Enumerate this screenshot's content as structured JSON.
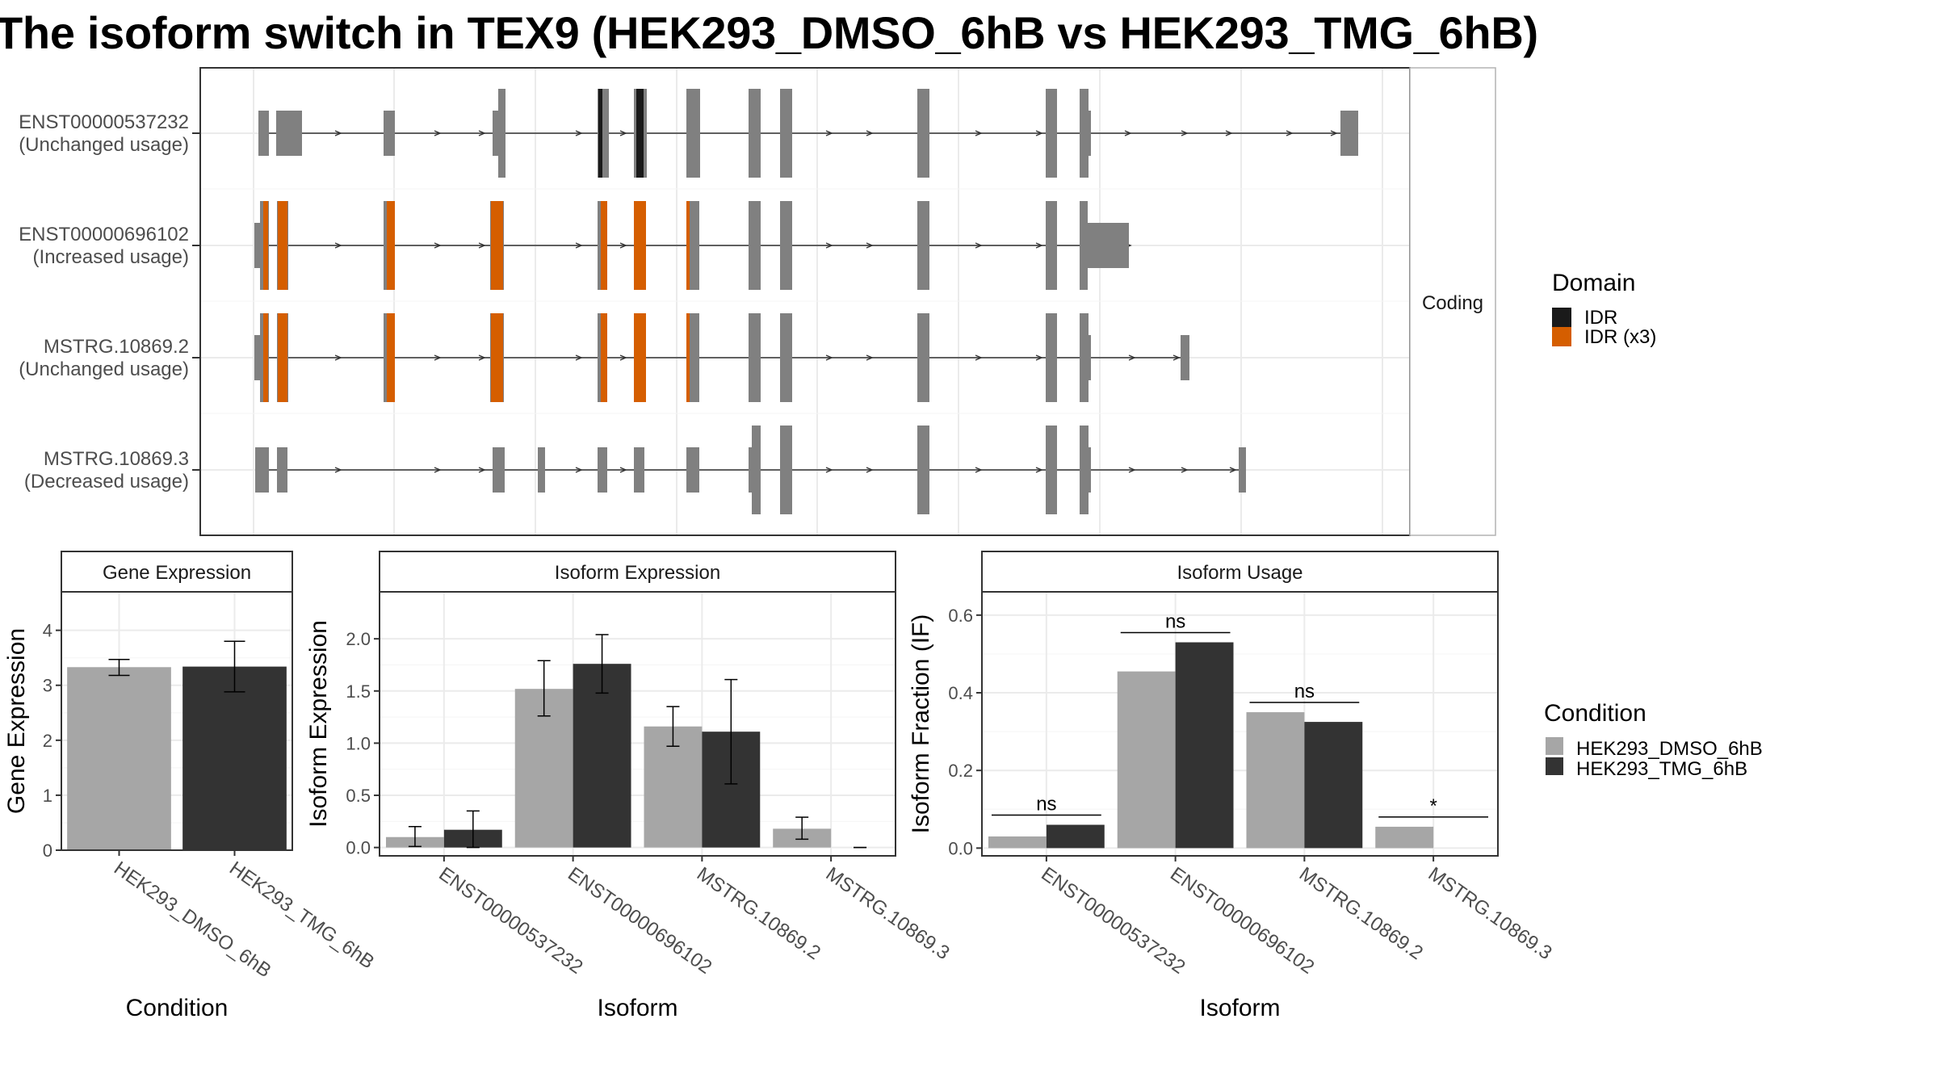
{
  "title": "The isoform switch in TEX9 (HEK293_DMSO_6hB vs HEK293_TMG_6hB)",
  "colors": {
    "idr": "#1a1a1a",
    "idr_x3": "#d55e00",
    "exon": "#808080",
    "dmso": "#a6a6a6",
    "tmg": "#333333",
    "grid": "#ebebeb"
  },
  "structure": {
    "strip_label": "Coding",
    "isoforms": [
      {
        "id": "ENST00000537232",
        "usage": "(Unchanged usage)"
      },
      {
        "id": "ENST00000696102",
        "usage": "(Increased usage)"
      },
      {
        "id": "MSTRG.10869.2",
        "usage": "(Unchanged usage)"
      },
      {
        "id": "MSTRG.10869.3",
        "usage": "(Decreased usage)"
      }
    ]
  },
  "legend_domain": {
    "title": "Domain",
    "items": [
      {
        "label": "IDR",
        "color": "#1a1a1a"
      },
      {
        "label": "IDR (x3)",
        "color": "#d55e00"
      }
    ]
  },
  "legend_condition": {
    "title": "Condition",
    "items": [
      {
        "label": "HEK293_DMSO_6hB",
        "color": "#a6a6a6"
      },
      {
        "label": "HEK293_TMG_6hB",
        "color": "#333333"
      }
    ]
  },
  "chart_data": [
    {
      "type": "bar",
      "title": "Gene Expression",
      "xlabel": "Condition",
      "ylabel": "Gene Expression",
      "ylim": [
        0,
        4.7
      ],
      "yticks": [
        0,
        1,
        2,
        3,
        4
      ],
      "categories": [
        "HEK293_DMSO_6hB",
        "HEK293_TMG_6hB"
      ],
      "values": [
        3.33,
        3.34
      ],
      "error_low": [
        3.18,
        2.88
      ],
      "error_high": [
        3.47,
        3.8
      ],
      "colors": [
        "#a6a6a6",
        "#333333"
      ]
    },
    {
      "type": "bar",
      "title": "Isoform Expression",
      "xlabel": "Isoform",
      "ylabel": "Isoform Expression",
      "ylim": [
        -0.08,
        2.45
      ],
      "yticks": [
        0.0,
        0.5,
        1.0,
        1.5,
        2.0
      ],
      "categories": [
        "ENST00000537232",
        "ENST00000696102",
        "MSTRG.10869.2",
        "MSTRG.10869.3"
      ],
      "series": [
        {
          "name": "HEK293_DMSO_6hB",
          "values": [
            0.1,
            1.52,
            1.16,
            0.18
          ],
          "error_low": [
            0.01,
            1.26,
            0.97,
            0.08
          ],
          "error_high": [
            0.2,
            1.79,
            1.35,
            0.29
          ]
        },
        {
          "name": "HEK293_TMG_6hB",
          "values": [
            0.17,
            1.76,
            1.11,
            0.0
          ],
          "error_low": [
            0.0,
            1.48,
            0.61,
            0.0
          ],
          "error_high": [
            0.35,
            2.04,
            1.61,
            0.0
          ]
        }
      ]
    },
    {
      "type": "bar",
      "title": "Isoform Usage",
      "xlabel": "Isoform",
      "ylabel": "Isoform Fraction (IF)",
      "ylim": [
        -0.02,
        0.66
      ],
      "yticks": [
        0.0,
        0.2,
        0.4,
        0.6
      ],
      "categories": [
        "ENST00000537232",
        "ENST00000696102",
        "MSTRG.10869.2",
        "MSTRG.10869.3"
      ],
      "series": [
        {
          "name": "HEK293_DMSO_6hB",
          "values": [
            0.03,
            0.455,
            0.35,
            0.055
          ]
        },
        {
          "name": "HEK293_TMG_6hB",
          "values": [
            0.06,
            0.53,
            0.325,
            0.0
          ]
        }
      ],
      "significance": [
        {
          "label": "ns",
          "y": 0.085
        },
        {
          "label": "ns",
          "y": 0.555
        },
        {
          "label": "ns",
          "y": 0.375
        },
        {
          "label": "*",
          "y": 0.08
        }
      ]
    }
  ]
}
